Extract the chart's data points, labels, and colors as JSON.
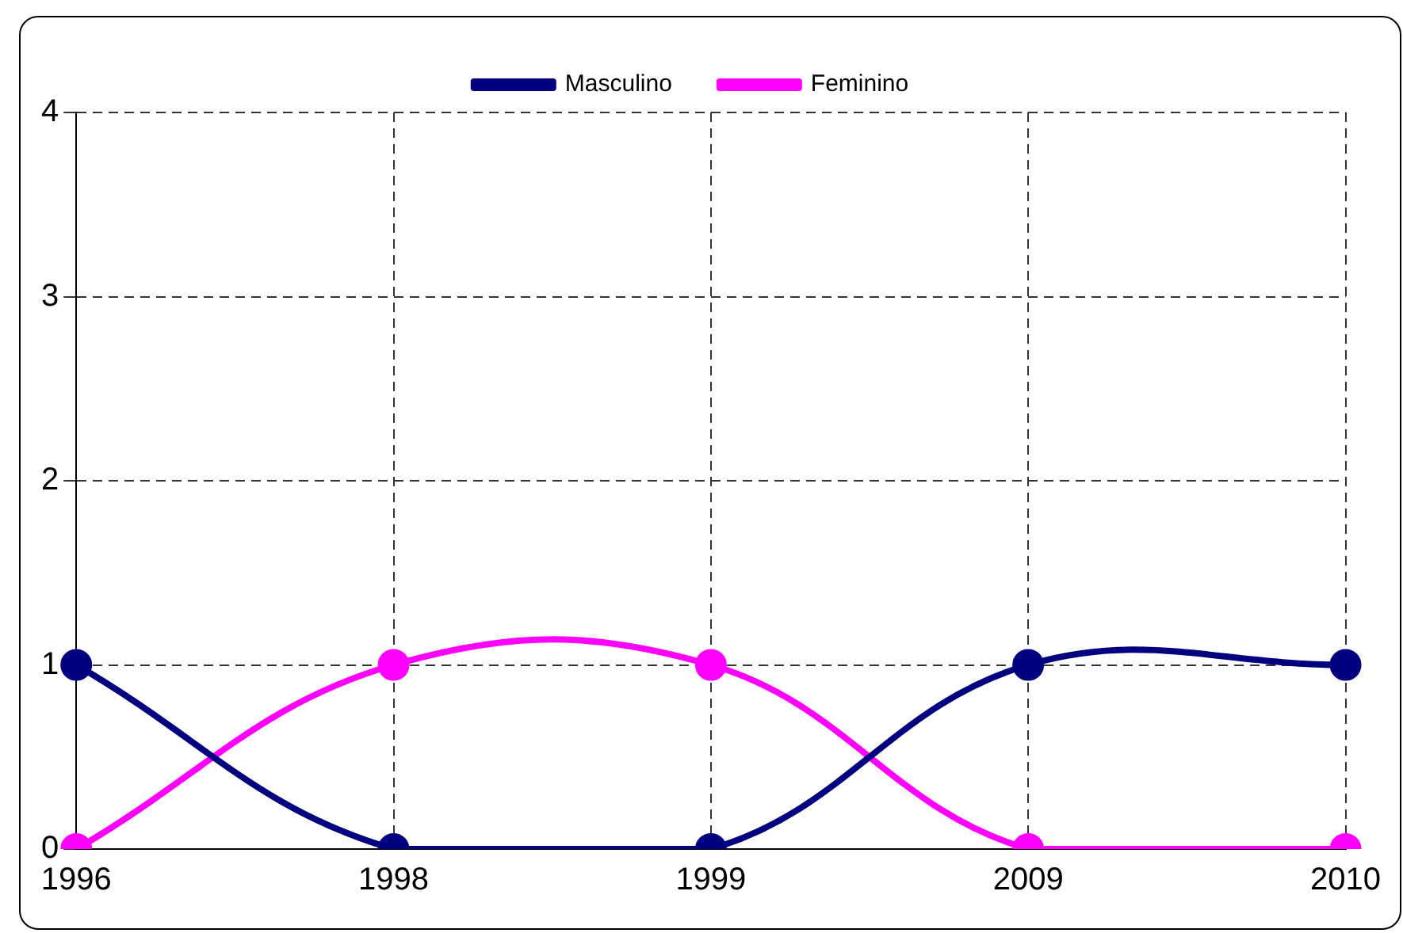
{
  "chart_data": {
    "type": "line",
    "categories": [
      "1996",
      "1998",
      "1999",
      "2009",
      "2010"
    ],
    "series": [
      {
        "name": "Masculino",
        "color": "#000080",
        "values": [
          1,
          0,
          0,
          1,
          1
        ]
      },
      {
        "name": "Feminino",
        "color": "#ff00ff",
        "values": [
          0,
          1,
          1,
          0,
          0
        ]
      }
    ],
    "ylim": [
      0,
      4
    ],
    "yticks": [
      0,
      1,
      2,
      3,
      4
    ],
    "grid": true,
    "legend": "top",
    "marker": "circle",
    "line_style": "solid"
  }
}
